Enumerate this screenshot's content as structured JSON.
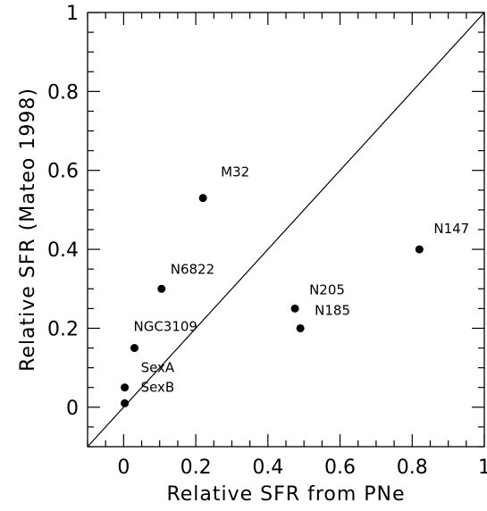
{
  "chart_data": {
    "type": "scatter",
    "title": "",
    "xlabel": "Relative SFR from PNe",
    "ylabel": "Relative SFR (Mateo 1998)",
    "xlim": [
      -0.1,
      1.0
    ],
    "ylim": [
      -0.1,
      1.0
    ],
    "grid": false,
    "x_ticks": [
      0,
      0.2,
      0.4,
      0.6,
      0.8,
      1
    ],
    "x_tick_labels": [
      "0",
      "0.2",
      "0.4",
      "0.6",
      "0.8",
      "1"
    ],
    "y_ticks": [
      0,
      0.2,
      0.4,
      0.6,
      0.8,
      1
    ],
    "y_tick_labels": [
      "0",
      "0.2",
      "0.4",
      "0.6",
      "0.8",
      "1"
    ],
    "reference_line": {
      "x": [
        -0.1,
        1.0
      ],
      "y": [
        -0.1,
        1.0
      ]
    },
    "points": [
      {
        "label": "M32",
        "x": 0.22,
        "y": 0.53
      },
      {
        "label": "N147",
        "x": 0.82,
        "y": 0.4
      },
      {
        "label": "N6822",
        "x": 0.105,
        "y": 0.3
      },
      {
        "label": "N205",
        "x": 0.475,
        "y": 0.25
      },
      {
        "label": "N185",
        "x": 0.49,
        "y": 0.2
      },
      {
        "label": "NGC3109",
        "x": 0.03,
        "y": 0.15
      },
      {
        "label": "SexA",
        "x": 0.003,
        "y": 0.05
      },
      {
        "label": "SexB",
        "x": 0.003,
        "y": 0.01
      }
    ]
  }
}
